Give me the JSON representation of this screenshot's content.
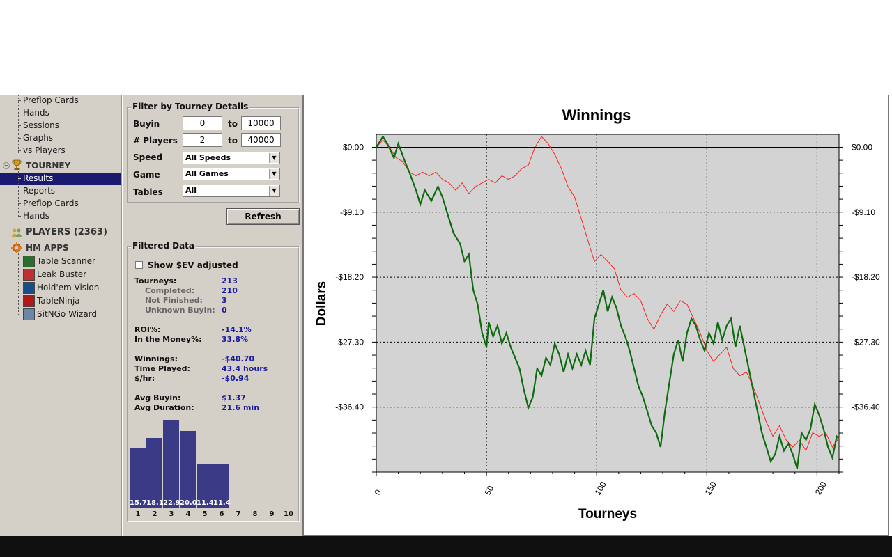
{
  "sidebar": {
    "cash_items": [
      "Preflop Cards",
      "Hands",
      "Sessions",
      "Graphs",
      "vs Players"
    ],
    "tourney_header": "TOURNEY",
    "tourney_items": [
      "Results",
      "Reports",
      "Preflop Cards",
      "Hands"
    ],
    "selected_item": "Results",
    "players_header": "PLAYERS (2363)",
    "apps_header": "HM APPS",
    "apps": [
      {
        "label": "Table Scanner",
        "color": "#2e6b2e"
      },
      {
        "label": "Leak Buster",
        "color": "#c03030"
      },
      {
        "label": "Hold'em Vision",
        "color": "#1a4c8c"
      },
      {
        "label": "TableNinja",
        "color": "#b01818"
      },
      {
        "label": "SitNGo Wizard",
        "color": "#6a86a8"
      }
    ]
  },
  "filters": {
    "section_title": "Filter by Tourney Details",
    "buyin_label": "Buyin",
    "buyin_from": "0",
    "buyin_to": "10000",
    "players_label": "# Players",
    "players_from": "2",
    "players_to": "40000",
    "to_label": "to",
    "speed_label": "Speed",
    "speed_value": "All Speeds",
    "game_label": "Game",
    "game_value": "All Games",
    "tables_label": "Tables",
    "tables_value": "All",
    "refresh_label": "Refresh"
  },
  "filtered": {
    "section_title": "Filtered Data",
    "show_ev_label": "Show $EV adjusted",
    "stats": [
      {
        "label": "Tourneys:",
        "value": "213",
        "sub": false
      },
      {
        "label": "Completed:",
        "value": "210",
        "sub": true
      },
      {
        "label": "Not Finished:",
        "value": "3",
        "sub": true
      },
      {
        "label": "Unknown Buyin:",
        "value": "0",
        "sub": true
      },
      {
        "label": "ROI%:",
        "value": "-14.1%",
        "sub": false
      },
      {
        "label": "In the Money%:",
        "value": "33.8%",
        "sub": false
      },
      {
        "label": "Winnings:",
        "value": "-$40.70",
        "sub": false
      },
      {
        "label": "Time Played:",
        "value": "43.4 hours",
        "sub": false
      },
      {
        "label": "$/hr:",
        "value": "-$0.94",
        "sub": false
      },
      {
        "label": "Avg Buyin:",
        "value": "$1.37",
        "sub": false
      },
      {
        "label": "Avg Duration:",
        "value": "21.6 min",
        "sub": false
      }
    ],
    "histogram": {
      "bars": [
        {
          "place": "1",
          "pct": 15.7,
          "label": "15.7"
        },
        {
          "place": "2",
          "pct": 18.1,
          "label": "18.1"
        },
        {
          "place": "3",
          "pct": 22.9,
          "label": "22.9"
        },
        {
          "place": "4",
          "pct": 20.0,
          "label": "20.0"
        },
        {
          "place": "5",
          "pct": 11.4,
          "label": "11.4"
        },
        {
          "place": "6",
          "pct": 11.4,
          "label": "11.4"
        },
        {
          "place": "7",
          "pct": 0,
          "label": ""
        },
        {
          "place": "8",
          "pct": 0,
          "label": ""
        },
        {
          "place": "9",
          "pct": 0,
          "label": ""
        },
        {
          "place": "10",
          "pct": 0,
          "label": ""
        }
      ],
      "max_pct": 22.9,
      "bar_color": "#3b3a87"
    }
  },
  "chart_data": {
    "type": "line",
    "title": "Winnings",
    "xlabel": "Tourneys",
    "ylabel": "Dollars",
    "xlim": [
      0,
      210
    ],
    "ylim": [
      -45.5,
      1.8
    ],
    "x_ticks": [
      "0",
      "50",
      "100",
      "150",
      "200"
    ],
    "y_ticks": [
      "$0.00",
      "-$9.10",
      "-$18.20",
      "-$27.30",
      "-$36.40"
    ],
    "y_tick_values": [
      0,
      -9.1,
      -18.2,
      -27.3,
      -36.4
    ],
    "grid": true,
    "colors": {
      "winnings": "#0f6b0f",
      "ev": "#ff2020",
      "plot_bg": "#d3d3d3"
    },
    "series": [
      {
        "key": "winnings",
        "values": [
          [
            0,
            0
          ],
          [
            3,
            1.5
          ],
          [
            5,
            0.5
          ],
          [
            8,
            -1.5
          ],
          [
            10,
            0.5
          ],
          [
            13,
            -2
          ],
          [
            15,
            -3.5
          ],
          [
            18,
            -6
          ],
          [
            20,
            -8
          ],
          [
            22,
            -6
          ],
          [
            25,
            -7.5
          ],
          [
            28,
            -5.5
          ],
          [
            30,
            -7
          ],
          [
            33,
            -10
          ],
          [
            35,
            -12
          ],
          [
            38,
            -13.5
          ],
          [
            40,
            -16
          ],
          [
            42,
            -15
          ],
          [
            44,
            -20
          ],
          [
            46,
            -22
          ],
          [
            48,
            -26
          ],
          [
            50,
            -28
          ],
          [
            51,
            -24.5
          ],
          [
            53,
            -26.5
          ],
          [
            55,
            -25
          ],
          [
            57,
            -27.5
          ],
          [
            59,
            -26
          ],
          [
            61,
            -28
          ],
          [
            63,
            -29.5
          ],
          [
            65,
            -31
          ],
          [
            67,
            -34
          ],
          [
            69,
            -36.5
          ],
          [
            71,
            -35
          ],
          [
            73,
            -31
          ],
          [
            75,
            -32
          ],
          [
            77,
            -29.5
          ],
          [
            79,
            -30.5
          ],
          [
            81,
            -27.5
          ],
          [
            83,
            -29
          ],
          [
            85,
            -31.5
          ],
          [
            87,
            -29
          ],
          [
            89,
            -31
          ],
          [
            91,
            -29
          ],
          [
            93,
            -30.5
          ],
          [
            95,
            -28.5
          ],
          [
            97,
            -30.5
          ],
          [
            99,
            -24
          ],
          [
            101,
            -22
          ],
          [
            103,
            -20
          ],
          [
            105,
            -23
          ],
          [
            107,
            -21
          ],
          [
            109,
            -22.5
          ],
          [
            111,
            -25
          ],
          [
            113,
            -26.5
          ],
          [
            115,
            -28.5
          ],
          [
            117,
            -31
          ],
          [
            119,
            -33.5
          ],
          [
            121,
            -35
          ],
          [
            123,
            -37
          ],
          [
            125,
            -39
          ],
          [
            127,
            -40
          ],
          [
            129,
            -42
          ],
          [
            131,
            -37
          ],
          [
            133,
            -33
          ],
          [
            135,
            -29
          ],
          [
            137,
            -27
          ],
          [
            139,
            -30
          ],
          [
            141,
            -26
          ],
          [
            143,
            -24
          ],
          [
            145,
            -25
          ],
          [
            147,
            -27
          ],
          [
            149,
            -28.5
          ],
          [
            151,
            -26
          ],
          [
            153,
            -27.5
          ],
          [
            155,
            -24.5
          ],
          [
            157,
            -27
          ],
          [
            159,
            -25
          ],
          [
            161,
            -24
          ],
          [
            163,
            -28
          ],
          [
            165,
            -25
          ],
          [
            167,
            -28
          ],
          [
            169,
            -31
          ],
          [
            171,
            -34
          ],
          [
            173,
            -37
          ],
          [
            175,
            -40
          ],
          [
            177,
            -42
          ],
          [
            179,
            -44
          ],
          [
            181,
            -43
          ],
          [
            183,
            -40.5
          ],
          [
            185,
            -42.5
          ],
          [
            187,
            -41.5
          ],
          [
            189,
            -43
          ],
          [
            191,
            -45
          ],
          [
            193,
            -40
          ],
          [
            195,
            -41
          ],
          [
            197,
            -39.5
          ],
          [
            199,
            -36
          ],
          [
            201,
            -37.5
          ],
          [
            203,
            -39.5
          ],
          [
            205,
            -42
          ],
          [
            207,
            -43.5
          ],
          [
            209,
            -40.5
          ],
          [
            210,
            -40.7
          ]
        ]
      },
      {
        "key": "ev",
        "values": [
          [
            0,
            0
          ],
          [
            3,
            1
          ],
          [
            6,
            0
          ],
          [
            9,
            -1.5
          ],
          [
            12,
            -2
          ],
          [
            15,
            -3.5
          ],
          [
            18,
            -4
          ],
          [
            21,
            -3.5
          ],
          [
            24,
            -4
          ],
          [
            27,
            -3.5
          ],
          [
            30,
            -4.5
          ],
          [
            33,
            -5
          ],
          [
            36,
            -6
          ],
          [
            39,
            -5
          ],
          [
            42,
            -6.5
          ],
          [
            45,
            -5.5
          ],
          [
            48,
            -5
          ],
          [
            51,
            -4.5
          ],
          [
            54,
            -5
          ],
          [
            57,
            -4
          ],
          [
            60,
            -4.5
          ],
          [
            63,
            -4
          ],
          [
            66,
            -3
          ],
          [
            69,
            -2.5
          ],
          [
            72,
            0
          ],
          [
            75,
            1.5
          ],
          [
            78,
            0.5
          ],
          [
            81,
            -1
          ],
          [
            84,
            -3
          ],
          [
            87,
            -5.5
          ],
          [
            90,
            -7
          ],
          [
            93,
            -10
          ],
          [
            96,
            -13
          ],
          [
            99,
            -16
          ],
          [
            102,
            -15
          ],
          [
            105,
            -16
          ],
          [
            108,
            -17
          ],
          [
            111,
            -20
          ],
          [
            114,
            -21
          ],
          [
            117,
            -20.5
          ],
          [
            120,
            -21.5
          ],
          [
            123,
            -24
          ],
          [
            126,
            -25.5
          ],
          [
            129,
            -23.5
          ],
          [
            132,
            -22
          ],
          [
            135,
            -23
          ],
          [
            138,
            -21.5
          ],
          [
            141,
            -22
          ],
          [
            144,
            -24
          ],
          [
            147,
            -26
          ],
          [
            150,
            -28.5
          ],
          [
            153,
            -30
          ],
          [
            156,
            -29
          ],
          [
            159,
            -28
          ],
          [
            162,
            -31
          ],
          [
            165,
            -32
          ],
          [
            168,
            -31.5
          ],
          [
            171,
            -33.5
          ],
          [
            174,
            -36
          ],
          [
            177,
            -38.5
          ],
          [
            180,
            -40.5
          ],
          [
            183,
            -39
          ],
          [
            186,
            -41
          ],
          [
            189,
            -42
          ],
          [
            192,
            -41
          ],
          [
            195,
            -42.5
          ],
          [
            198,
            -40
          ],
          [
            201,
            -40.5
          ],
          [
            204,
            -40
          ],
          [
            207,
            -42
          ],
          [
            210,
            -40.7
          ]
        ]
      }
    ]
  }
}
